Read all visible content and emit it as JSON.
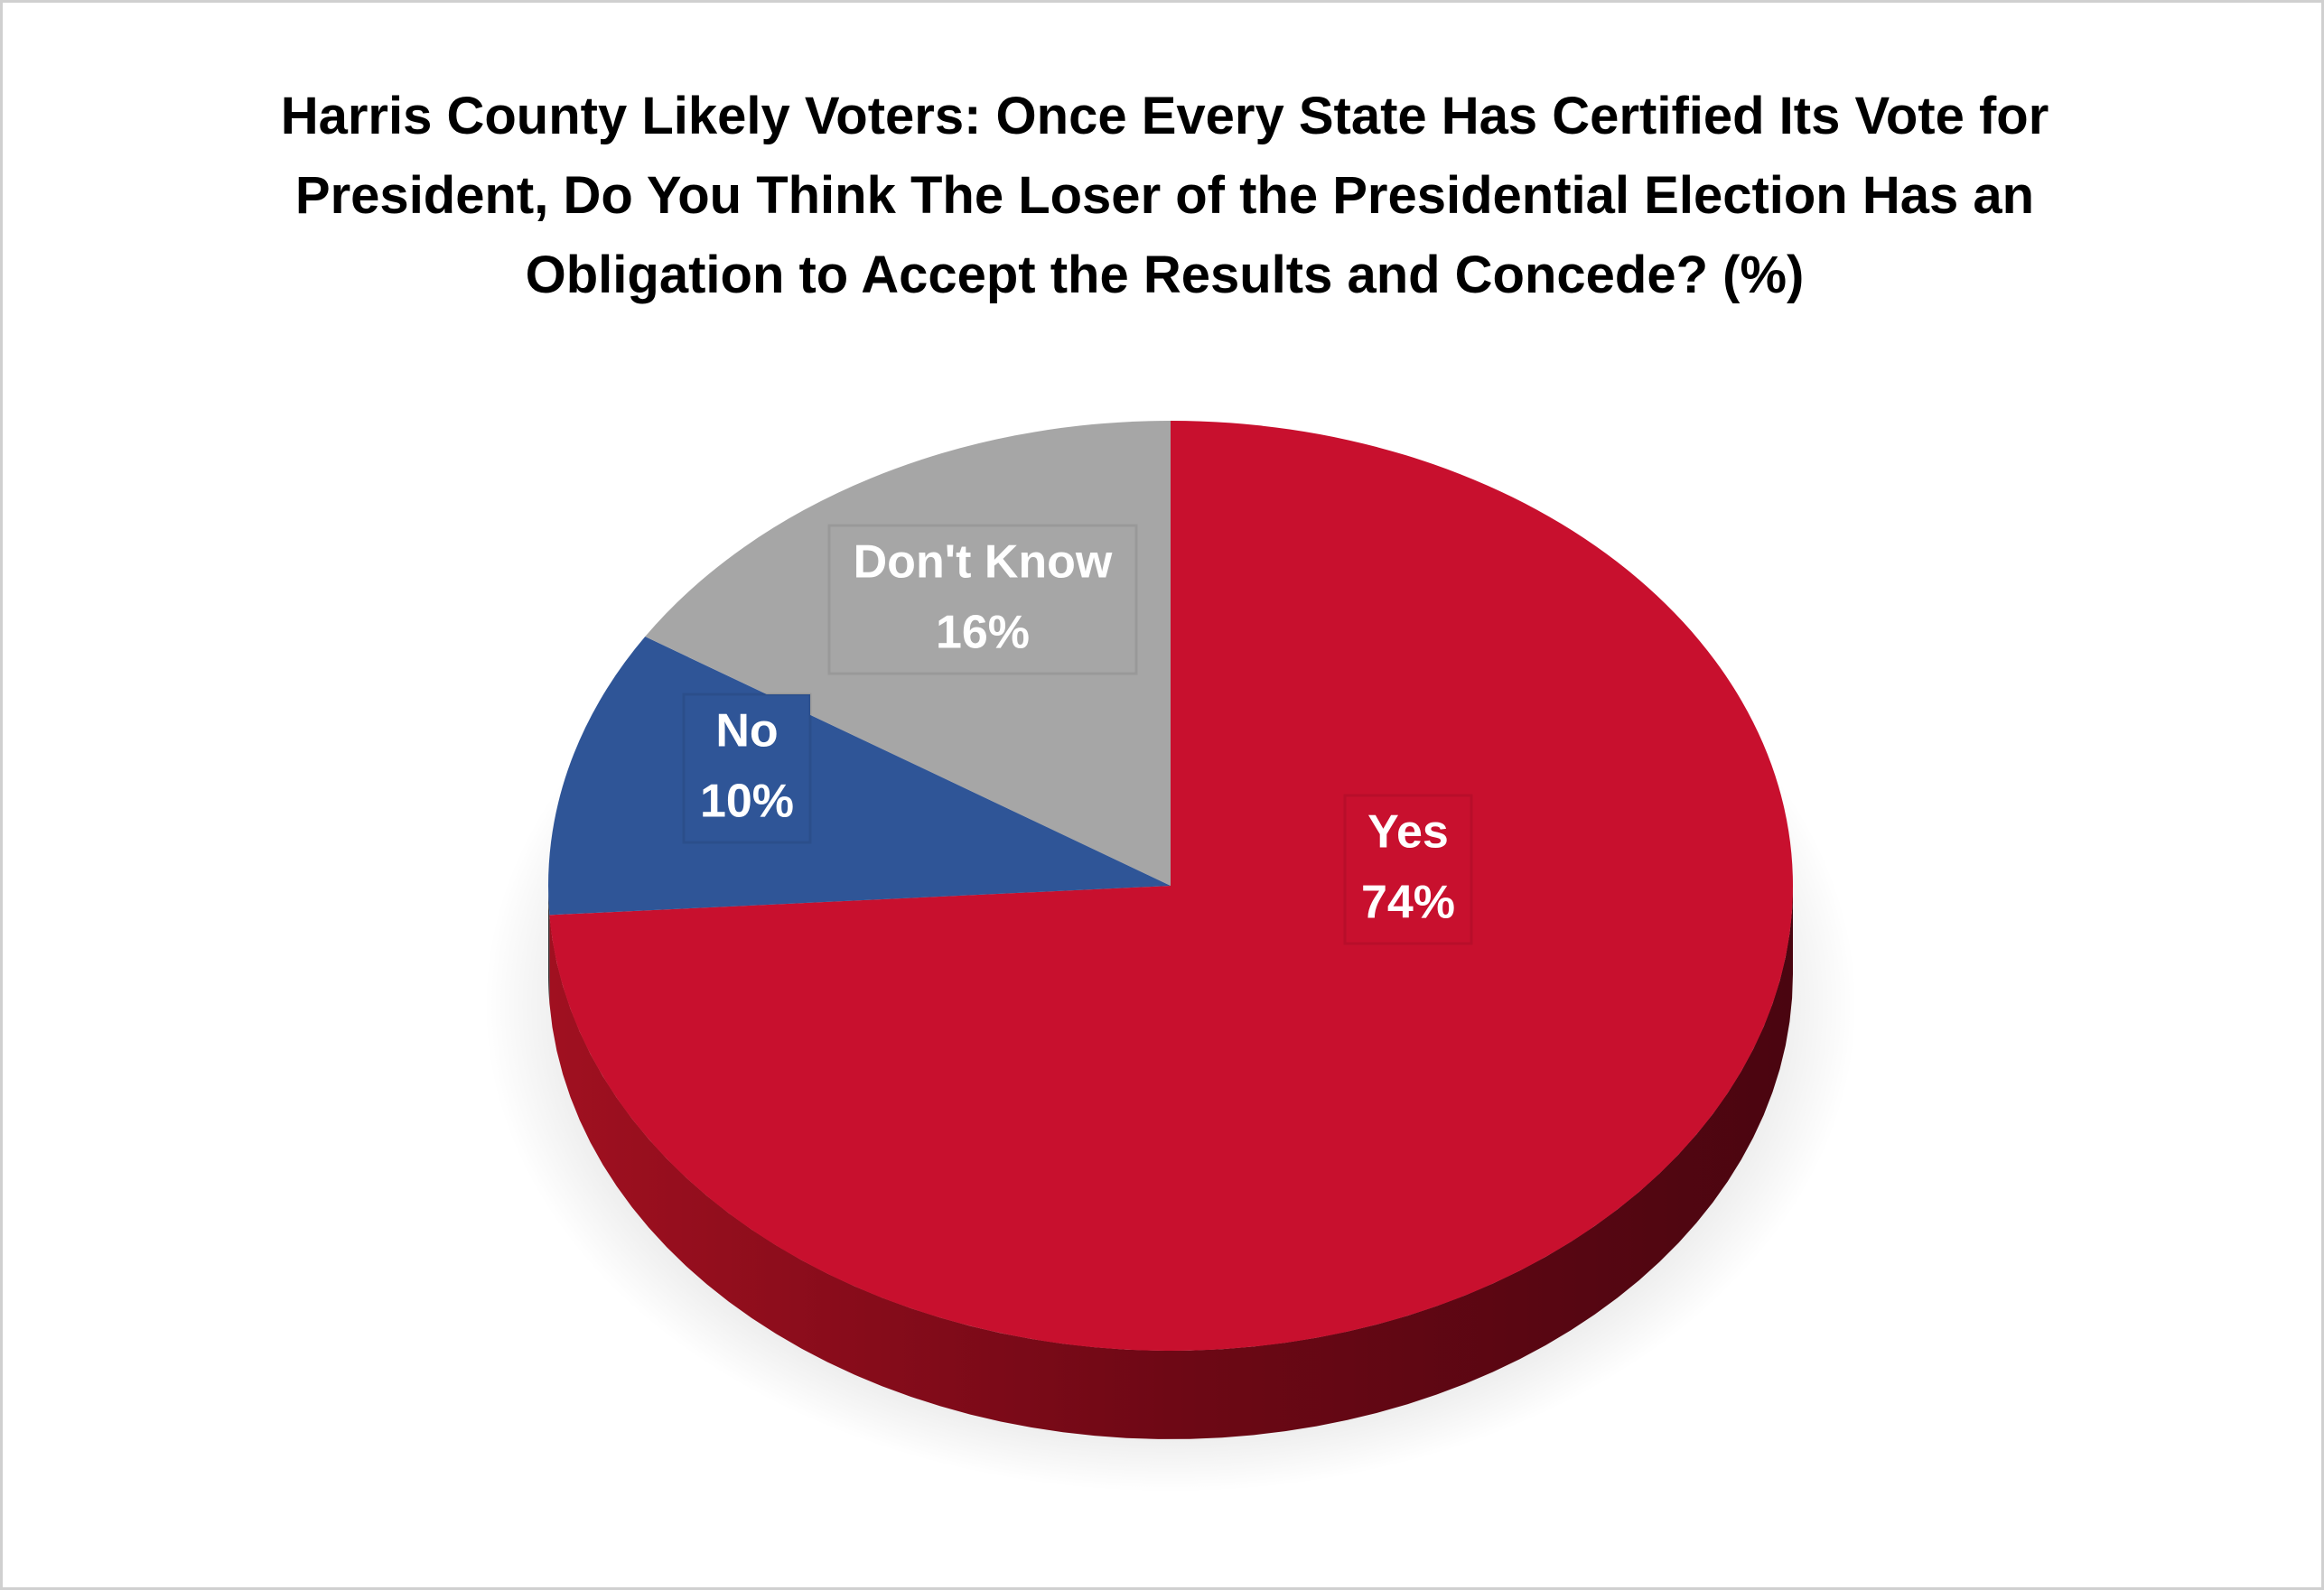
{
  "chart_data": {
    "type": "pie",
    "title": "Harris County Likely Voters: Once Every State Has Certified Its Vote for President, Do You Think The Loser of the Presidential Election Has an Obligation to Accept the Results and Concede? (%)",
    "categories": [
      "Yes",
      "No",
      "Don't Know"
    ],
    "values": [
      74,
      10,
      16
    ],
    "value_labels": [
      "74%",
      "10%",
      "16%"
    ],
    "colors": [
      "#c8102e",
      "#2f5597",
      "#a6a6a6"
    ]
  }
}
